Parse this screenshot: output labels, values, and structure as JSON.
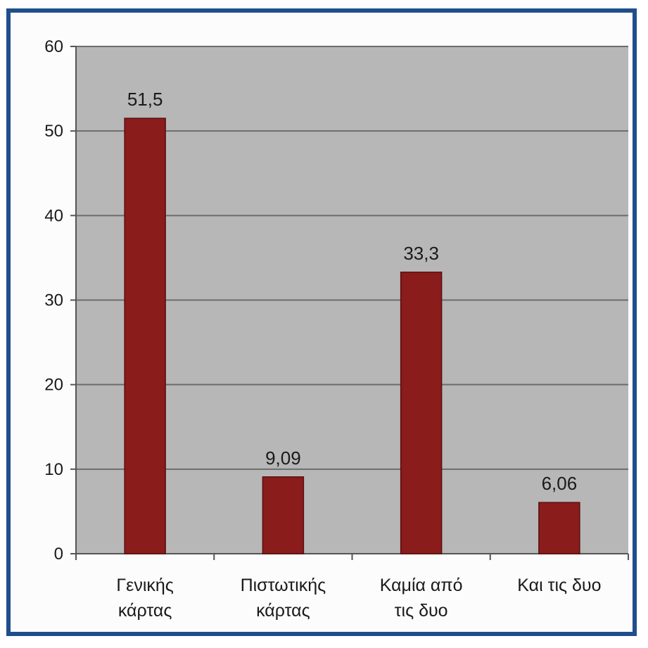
{
  "chart_data": {
    "type": "bar",
    "categories": [
      [
        "Γενικής",
        "κάρτας"
      ],
      [
        "Πιστωτικής",
        "κάρτας"
      ],
      [
        "Καμία από",
        "τις δυο"
      ],
      [
        "Και τις δυο"
      ]
    ],
    "values": [
      51.5,
      9.09,
      33.3,
      6.06
    ],
    "data_labels": [
      "51,5",
      "9,09",
      "33,3",
      "6,06"
    ],
    "ylim": [
      0,
      60
    ],
    "yticks": [
      0,
      10,
      20,
      30,
      40,
      50,
      60
    ],
    "grid": true,
    "colors": {
      "bar": "#8b1c1c",
      "bar_edge": "#5a0f0f",
      "plot_bg": "#b7b7b7",
      "gridline": "#6d6d6d",
      "frame": "#1f4e8c"
    }
  }
}
